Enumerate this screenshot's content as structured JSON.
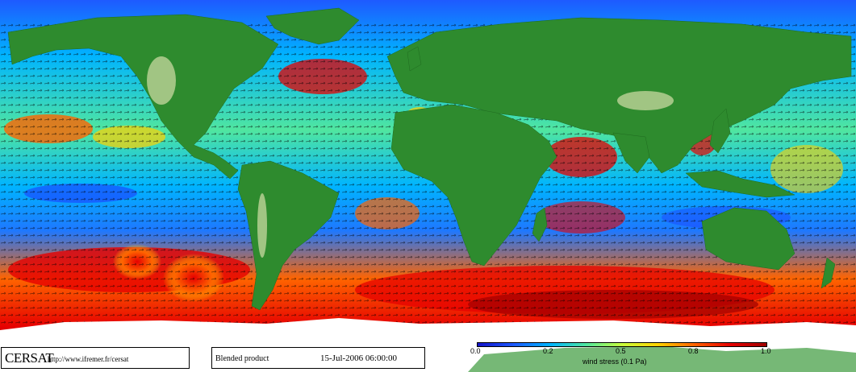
{
  "map": {
    "colormap": [
      "#1414c8",
      "#1e5aff",
      "#00b4ff",
      "#50e6a0",
      "#c8ff3c",
      "#ffd200",
      "#ff6400",
      "#e60000",
      "#a00000"
    ],
    "land_color": "#2e8b2e",
    "ice_color": "#ffffff",
    "arrow_color": "#000000"
  },
  "credit": {
    "logo": "CERSAT",
    "url": "http://www.ifremer.fr/cersat"
  },
  "product": {
    "label": "Blended product",
    "timestamp": "15-Jul-2006 06:00:00"
  },
  "colorbar": {
    "ticks": [
      "0.0",
      "0.2",
      "0.5",
      "0.8",
      "1.0"
    ],
    "label": "wind stress (0.1 Pa)"
  }
}
